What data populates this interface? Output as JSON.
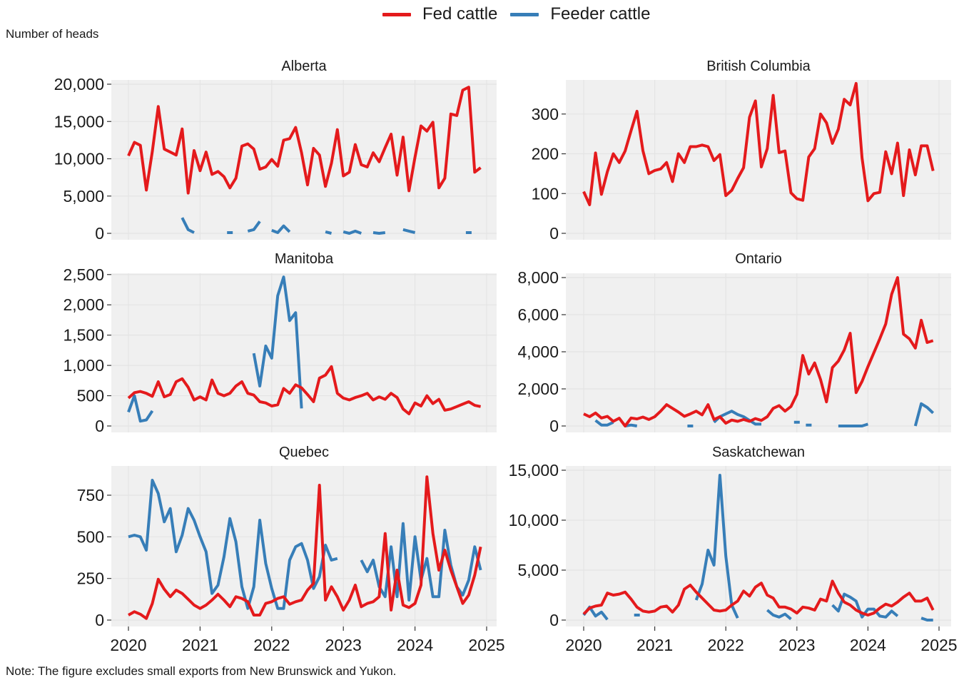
{
  "legend": {
    "fed_label": "Fed cattle",
    "feeder_label": "Feeder cattle"
  },
  "y_title": "Number of heads",
  "note": "Note: The figure excludes small exports from New Brunswick and Yukon.",
  "colors": {
    "fed": "#e41a1c",
    "feeder": "#377eb8",
    "panel_bg": "#f0f0f0",
    "grid": "#e4e4e4"
  },
  "chart_data": {
    "type": "line",
    "x_unit": "month, Jan 2020 to Dec 2024 (60 monthly values; null = gap)",
    "x_ticks": [
      "2020",
      "2021",
      "2022",
      "2023",
      "2024",
      "2025"
    ],
    "panels": [
      {
        "title": "Alberta",
        "ylim": [
          0,
          20000
        ],
        "y_ticks": [
          0,
          5000,
          10000,
          15000,
          20000
        ],
        "y_tick_labels": [
          "0",
          "5,000",
          "10,000",
          "15,000",
          "20,000"
        ],
        "series": [
          {
            "name": "Fed cattle",
            "values": [
              10400,
              12200,
              11800,
              5800,
              11000,
              17000,
              11300,
              10900,
              10500,
              14000,
              5400,
              11100,
              8400,
              10900,
              7900,
              8300,
              7600,
              6100,
              7400,
              11700,
              12000,
              11300,
              8600,
              8900,
              9900,
              9000,
              12500,
              12700,
              14200,
              10800,
              6500,
              11400,
              10500,
              6300,
              9400,
              13900,
              7700,
              8200,
              11900,
              9200,
              8900,
              10800,
              9600,
              11500,
              13300,
              7800,
              12900,
              5700,
              10200,
              14400,
              13700,
              14900,
              6100,
              7400,
              16000,
              15800,
              19200,
              19600,
              8200,
              8800
            ]
          },
          {
            "name": "Feeder cattle",
            "values": [
              null,
              null,
              null,
              null,
              null,
              null,
              null,
              null,
              null,
              2100,
              500,
              100,
              null,
              null,
              null,
              null,
              null,
              100,
              null,
              null,
              300,
              500,
              1600,
              null,
              400,
              100,
              1000,
              200,
              null,
              null,
              null,
              null,
              null,
              200,
              0,
              null,
              200,
              0,
              300,
              0,
              null,
              100,
              0,
              100,
              null,
              null,
              500,
              300,
              100,
              null,
              null,
              null,
              null,
              null,
              null,
              null,
              null,
              100,
              null,
              null
            ]
          }
        ]
      },
      {
        "title": "British Columbia",
        "ylim": [
          0,
          375
        ],
        "y_ticks": [
          0,
          100,
          200,
          300
        ],
        "y_tick_labels": [
          "0",
          "100",
          "200",
          "300"
        ],
        "series": [
          {
            "name": "Fed cattle",
            "values": [
              105,
              72,
              202,
              98,
              155,
              200,
              178,
              207,
              258,
              307,
              208,
              150,
              158,
              162,
              178,
              130,
              200,
              178,
              218,
              218,
              222,
              218,
              183,
              198,
              95,
              108,
              138,
              165,
              292,
              333,
              167,
              213,
              347,
              203,
              207,
              102,
              87,
              83,
              192,
              213,
              300,
              278,
              226,
              262,
              337,
              323,
              377,
              190,
              82,
              100,
              103,
              205,
              150,
              227,
              95,
              210,
              147,
              220,
              220,
              157
            ]
          }
        ]
      },
      {
        "title": "Manitoba",
        "ylim": [
          0,
          2450
        ],
        "y_ticks": [
          0,
          500,
          1000,
          1500,
          2000,
          2500
        ],
        "y_tick_labels": [
          "0",
          "500",
          "1,000",
          "1,500",
          "2,000",
          "2,500"
        ],
        "series": [
          {
            "name": "Fed cattle",
            "values": [
              460,
              550,
              570,
              540,
              490,
              730,
              480,
              520,
              730,
              780,
              640,
              430,
              480,
              430,
              760,
              540,
              500,
              540,
              660,
              730,
              540,
              510,
              400,
              380,
              330,
              350,
              620,
              540,
              680,
              630,
              520,
              400,
              790,
              840,
              980,
              540,
              460,
              430,
              470,
              500,
              540,
              430,
              480,
              440,
              540,
              470,
              280,
              200,
              380,
              330,
              500,
              370,
              440,
              260,
              280,
              320,
              360,
              400,
              340,
              320
            ]
          },
          {
            "name": "Feeder cattle",
            "values": [
              230,
              500,
              80,
              100,
              250,
              null,
              null,
              null,
              null,
              null,
              null,
              null,
              null,
              null,
              null,
              null,
              null,
              null,
              null,
              null,
              null,
              1200,
              660,
              1320,
              1120,
              2150,
              2460,
              1740,
              1870,
              290,
              null,
              null,
              null,
              null,
              null,
              null,
              null,
              null,
              null,
              null,
              null,
              null,
              null,
              null,
              null,
              null,
              null,
              null,
              null,
              null,
              null,
              null,
              null,
              null,
              null,
              null,
              null,
              null,
              null,
              null
            ]
          }
        ]
      },
      {
        "title": "Ontario",
        "ylim": [
          0,
          8000
        ],
        "y_ticks": [
          0,
          2000,
          4000,
          6000,
          8000
        ],
        "y_tick_labels": [
          "0",
          "2,000",
          "4,000",
          "6,000",
          "8,000"
        ],
        "series": [
          {
            "name": "Fed cattle",
            "values": [
              650,
              500,
              700,
              430,
              520,
              250,
              420,
              0,
              430,
              380,
              480,
              350,
              500,
              800,
              1150,
              950,
              750,
              520,
              650,
              800,
              600,
              1150,
              350,
              500,
              150,
              320,
              250,
              350,
              250,
              400,
              300,
              500,
              950,
              1100,
              800,
              1050,
              1700,
              3800,
              2800,
              3400,
              2500,
              1300,
              3150,
              3500,
              4100,
              5000,
              1800,
              2400,
              3200,
              3950,
              4700,
              5500,
              7100,
              8000,
              4950,
              4700,
              4200,
              5700,
              4500,
              4600
            ]
          },
          {
            "name": "Feeder cattle",
            "values": [
              null,
              null,
              300,
              50,
              50,
              200,
              null,
              0,
              50,
              0,
              null,
              null,
              null,
              null,
              null,
              null,
              null,
              null,
              0,
              null,
              null,
              null,
              200,
              500,
              650,
              800,
              620,
              500,
              300,
              100,
              100,
              null,
              null,
              null,
              null,
              null,
              200,
              null,
              50,
              null,
              null,
              null,
              null,
              0,
              0,
              0,
              0,
              0,
              100,
              null,
              null,
              null,
              null,
              null,
              null,
              null,
              0,
              1200,
              1000,
              700
            ]
          }
        ]
      },
      {
        "title": "Quebec",
        "ylim": [
          0,
          900
        ],
        "y_ticks": [
          0,
          250,
          500,
          750
        ],
        "y_tick_labels": [
          "0",
          "250",
          "500",
          "750"
        ],
        "series": [
          {
            "name": "Fed cattle",
            "values": [
              30,
              50,
              35,
              10,
              100,
              245,
              185,
              140,
              180,
              160,
              125,
              90,
              70,
              90,
              120,
              155,
              120,
              80,
              140,
              130,
              110,
              30,
              30,
              100,
              110,
              130,
              140,
              95,
              110,
              120,
              180,
              220,
              810,
              120,
              200,
              140,
              60,
              120,
              210,
              80,
              100,
              110,
              140,
              520,
              60,
              300,
              90,
              75,
              100,
              210,
              860,
              520,
              300,
              420,
              300,
              200,
              100,
              150,
              270,
              440
            ]
          },
          {
            "name": "Feeder cattle",
            "values": [
              500,
              510,
              500,
              420,
              840,
              760,
              590,
              670,
              410,
              510,
              670,
              600,
              500,
              410,
              160,
              210,
              380,
              610,
              470,
              200,
              70,
              200,
              600,
              340,
              190,
              70,
              70,
              360,
              440,
              460,
              360,
              190,
              260,
              450,
              360,
              370,
              null,
              null,
              null,
              360,
              290,
              360,
              200,
              140,
              440,
              140,
              580,
              120,
              500,
              240,
              370,
              140,
              140,
              540,
              330,
              200,
              150,
              240,
              440,
              300
            ]
          }
        ]
      },
      {
        "title": "Saskatchewan",
        "ylim": [
          0,
          15000
        ],
        "y_ticks": [
          0,
          5000,
          10000,
          15000
        ],
        "y_tick_labels": [
          "0",
          "5,000",
          "10,000",
          "15,000"
        ],
        "series": [
          {
            "name": "Fed cattle",
            "values": [
              600,
              1200,
              1400,
              1500,
              2700,
              2500,
              2600,
              2800,
              2100,
              1300,
              900,
              800,
              900,
              1300,
              1400,
              800,
              1500,
              3100,
              3500,
              2800,
              2200,
              1600,
              1000,
              900,
              1000,
              1500,
              1900,
              2900,
              2400,
              3300,
              3700,
              2500,
              2200,
              1300,
              1300,
              1100,
              700,
              1300,
              1200,
              1000,
              2100,
              1900,
              3900,
              2700,
              1800,
              1500,
              1000,
              700,
              500,
              700,
              1200,
              1600,
              1400,
              1800,
              2300,
              2700,
              1900,
              1900,
              2200,
              1000
            ]
          },
          {
            "name": "Feeder cattle",
            "values": [
              500,
              1300,
              400,
              800,
              50,
              null,
              null,
              null,
              null,
              500,
              null,
              null,
              null,
              null,
              null,
              null,
              null,
              null,
              null,
              2000,
              3600,
              7000,
              5500,
              14500,
              6400,
              1500,
              200,
              null,
              null,
              null,
              null,
              1000,
              500,
              300,
              600,
              100,
              null,
              null,
              null,
              null,
              null,
              null,
              1500,
              900,
              2600,
              2300,
              1900,
              300,
              1100,
              1100,
              400,
              300,
              900,
              400,
              null,
              null,
              null,
              200,
              0,
              0
            ]
          }
        ]
      }
    ]
  }
}
